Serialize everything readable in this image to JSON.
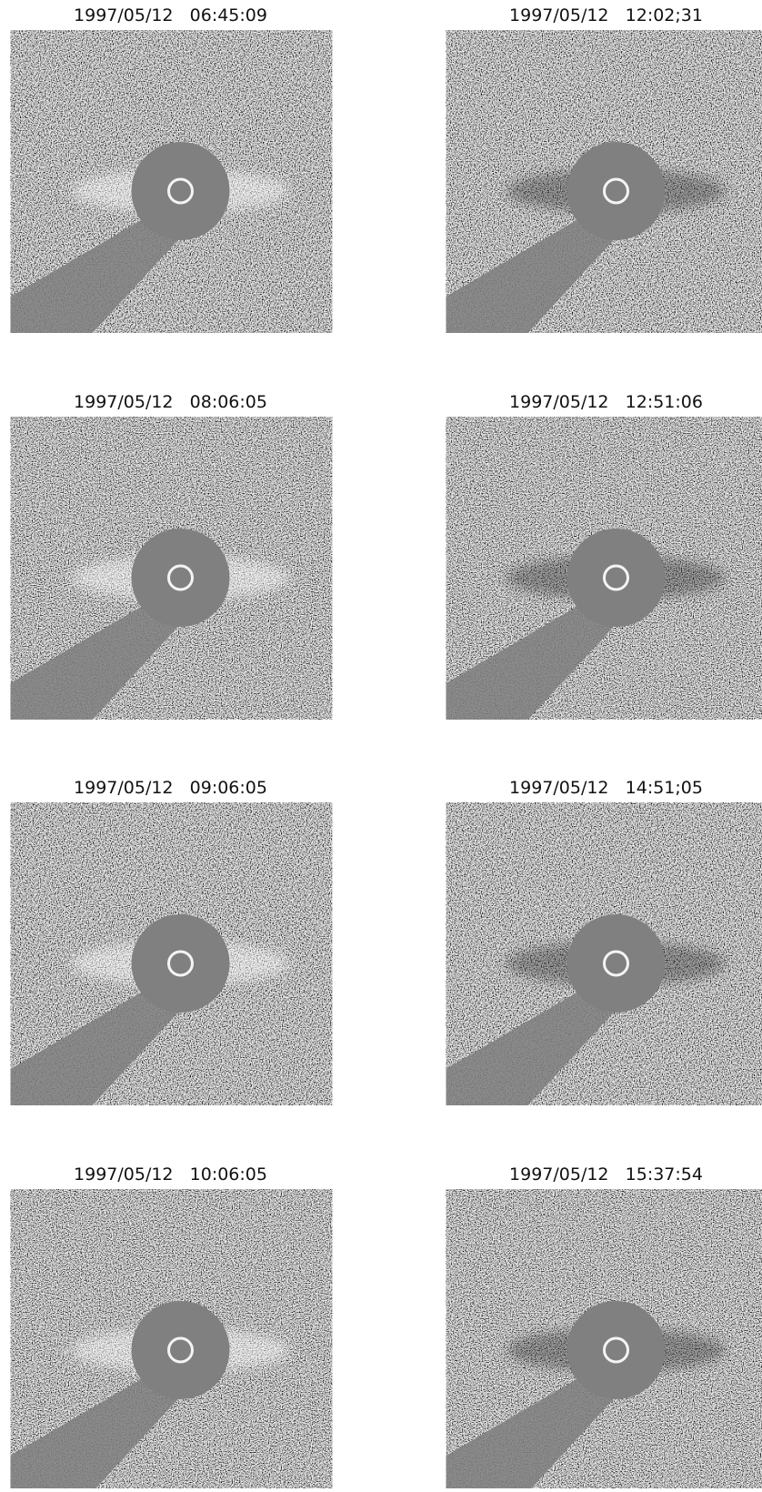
{
  "panels": [
    {
      "label": "1997/05/12   06:45:09"
    },
    {
      "label": "1997/05/12   08:06:05"
    },
    {
      "label": "1997/05/12   09:06:05"
    },
    {
      "label": "1997/05/12   10:06:05"
    },
    {
      "label": "1997/05/12   12:02;31"
    },
    {
      "label": "1997/05/12   12:51:06"
    },
    {
      "label": "1997/05/12   14:51;05"
    },
    {
      "label": "1997/05/12   15:37:54"
    }
  ]
}
